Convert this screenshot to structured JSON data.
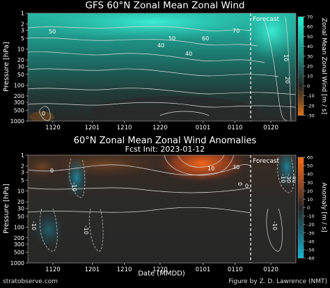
{
  "chart_data": [
    {
      "type": "heatmap",
      "title": "GFS 60°N Zonal Mean Zonal Wind",
      "ylabel": "Pressure [hPa]",
      "xlabel": "",
      "y_ticks": [
        "1",
        "2",
        "3",
        "5",
        "10",
        "20",
        "30",
        "50",
        "100",
        "200",
        "300",
        "500",
        "1000"
      ],
      "x_ticks": [
        "1120",
        "1201",
        "1210",
        "1220",
        "0101",
        "0110",
        "0120"
      ],
      "colorbar_label": "Zonal Mean Zonal Wind [m / s]",
      "colorbar_ticks": [
        "70",
        "60",
        "50",
        "40",
        "30",
        "20",
        "10",
        "0",
        "-10",
        "-20",
        "-30"
      ],
      "colorbar_range": [
        -30,
        70
      ],
      "contour_labels": [
        "50",
        "40",
        "50",
        "60",
        "70",
        "40",
        "10",
        "20",
        "0"
      ],
      "annotation": "Forecast",
      "forecast_start": "0111",
      "colors": {
        "high": "#1ee0c8",
        "mid": "#1f6b62",
        "zero": "#262626",
        "low": "#c06010"
      }
    },
    {
      "type": "heatmap",
      "title": "60°N Zonal Mean Zonal Wind Anomalies",
      "subtitle": "Fcst Init: 2023-01-12",
      "ylabel": "Pressure [hPa]",
      "xlabel": "Date (MMDD)",
      "y_ticks": [
        "1",
        "2",
        "3",
        "5",
        "10",
        "20",
        "30",
        "50",
        "100",
        "200",
        "300",
        "500",
        "1000"
      ],
      "x_ticks": [
        "1120",
        "1201",
        "1210",
        "1220",
        "0101",
        "0110",
        "0120"
      ],
      "colorbar_label": "Anomaly [m / s]",
      "colorbar_ticks": [
        "60",
        "50",
        "40",
        "30",
        "20",
        "10",
        "0",
        "-10",
        "-20",
        "-30",
        "-40",
        "-50",
        "-60"
      ],
      "colorbar_range": [
        -60,
        60
      ],
      "contour_labels": [
        "0",
        "-10",
        "10",
        "30",
        "-10",
        "0",
        "-10",
        "-10",
        "-30",
        "-40",
        "0",
        "-10"
      ],
      "annotation": "Forecast",
      "forecast_start": "0111",
      "colors": {
        "positive": "#ff5a10",
        "zero": "#262626",
        "negative": "#10a8c8"
      }
    }
  ],
  "titles": {
    "top": "GFS 60°N Zonal Mean Zonal Wind",
    "bottom": "60°N Zonal Mean Zonal Wind Anomalies",
    "bottom_sub": "Fcst Init: 2023-01-12"
  },
  "footer": {
    "left": "stratobserve.com",
    "right": "Figure by Z. D. Lawrence (NMT)"
  }
}
